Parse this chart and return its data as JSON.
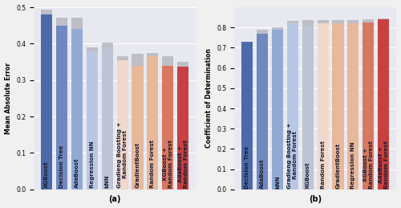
{
  "chart_a": {
    "labels": [
      "XGBoost",
      "Decision Tree",
      "AdaBoost",
      "Regression NN",
      "kNN",
      "Gradieng Boosting +\nRandom Forest",
      "GradientBoost",
      "Random Forest",
      "XGBoost +\nRandom Forest",
      "AdaBoost +\nRandom Forest"
    ],
    "values": [
      0.48,
      0.45,
      0.44,
      0.378,
      0.39,
      0.355,
      0.34,
      0.365,
      0.34,
      0.338
    ],
    "caps": [
      0.493,
      0.472,
      0.472,
      0.39,
      0.402,
      0.366,
      0.372,
      0.374,
      0.366,
      0.35
    ],
    "colors": [
      "#4c6aaa",
      "#7088c0",
      "#90aad4",
      "#b8c8e4",
      "#bcc4d5",
      "#f0d8cc",
      "#e8b89a",
      "#e8b89a",
      "#d87860",
      "#c84040"
    ],
    "ylabel": "Mean Absolute Error",
    "xlabel": "(a)",
    "ylim": [
      0.0,
      0.5
    ],
    "yticks": [
      0.0,
      0.1,
      0.2,
      0.3,
      0.4,
      0.5
    ]
  },
  "chart_b": {
    "labels": [
      "Decision Tree",
      "AdaBoost",
      "kNN",
      "Gradieng Boosting +\nRandom Forest",
      "XGBoost",
      "Random Forest",
      "GradientBoost",
      "Regression NN",
      "XGBoost +\nRandom Forest",
      "AdaBoost +\nRandom Forest"
    ],
    "values": [
      0.73,
      0.768,
      0.79,
      0.82,
      0.81,
      0.82,
      0.82,
      0.82,
      0.825,
      0.84
    ],
    "caps": [
      0.73,
      0.79,
      0.802,
      0.833,
      0.836,
      0.836,
      0.836,
      0.836,
      0.841,
      0.846
    ],
    "colors": [
      "#4c6aaa",
      "#7088c0",
      "#90aad4",
      "#b8c8e4",
      "#bcc4d5",
      "#f0d8cc",
      "#e8b89a",
      "#e8b89a",
      "#d87860",
      "#c84040"
    ],
    "ylabel": "Coefficient of Determination",
    "xlabel": "(b)",
    "ylim": [
      0.0,
      0.9
    ],
    "yticks": [
      0.0,
      0.1,
      0.2,
      0.3,
      0.4,
      0.5,
      0.6,
      0.7,
      0.8
    ]
  },
  "background_color": "#e8e8f0",
  "bar_width": 0.75,
  "cap_color": "#b0b0b8",
  "text_color": "#1a1a2e",
  "label_fontsize": 5.0,
  "tick_fontsize": 5.5,
  "xlabel_fontsize": 7.0,
  "ylabel_fontsize": 5.5
}
